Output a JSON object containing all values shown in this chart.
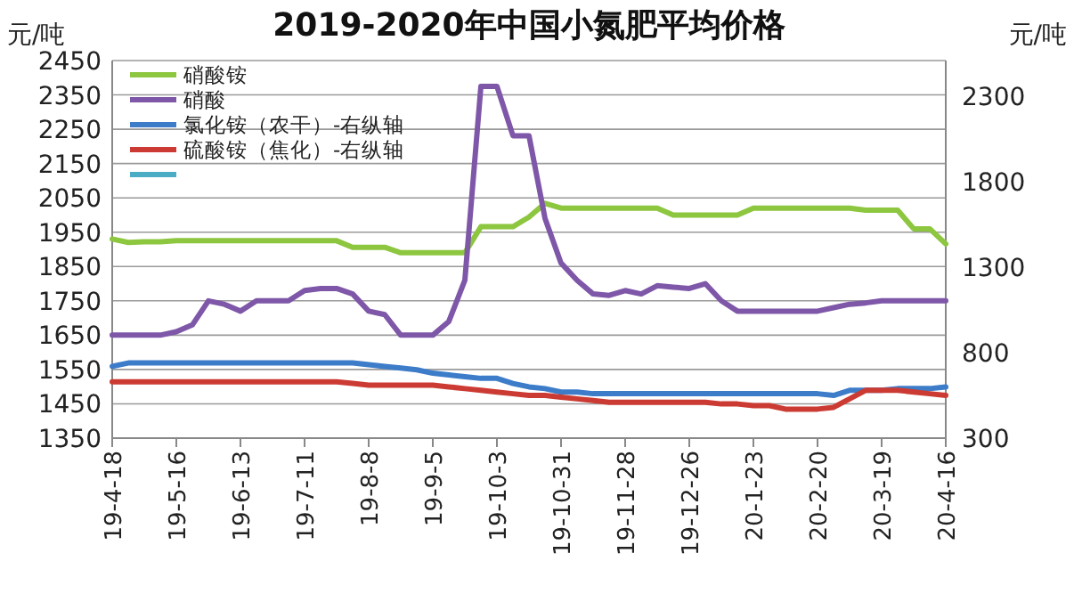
{
  "chart_data": {
    "type": "line",
    "title": "2019-2020年中国小氮肥平均价格",
    "ylabel": "元/吨",
    "y2label": "元/吨",
    "categories": [
      "19-4-18",
      null,
      null,
      null,
      "19-5-16",
      null,
      null,
      null,
      "19-6-13",
      null,
      null,
      null,
      "19-7-11",
      null,
      null,
      null,
      "19-8-8",
      null,
      null,
      null,
      "19-9-5",
      null,
      null,
      null,
      "19-10-3",
      null,
      null,
      null,
      "19-10-31",
      null,
      null,
      null,
      "19-11-28",
      null,
      null,
      null,
      "19-12-26",
      null,
      null,
      null,
      "20-1-23",
      null,
      null,
      null,
      "20-2-20",
      null,
      null,
      null,
      "20-3-19",
      null,
      null,
      null,
      "20-4-16"
    ],
    "ylim": [
      1350,
      2450
    ],
    "yticks": [
      1350,
      1450,
      1550,
      1650,
      1750,
      1850,
      1950,
      2050,
      2150,
      2250,
      2350,
      2450
    ],
    "y2lim": [
      300,
      2510
    ],
    "y2ticks": [
      300,
      800,
      1300,
      1800,
      2300
    ],
    "grid": "y",
    "legend": "top left",
    "marker": "none",
    "line_style": "solid",
    "series": [
      {
        "name": "硝酸铵",
        "color": "#8dc63f",
        "values": [
          1930,
          1920,
          1922,
          1922,
          1925,
          1925,
          1925,
          1925,
          1925,
          1925,
          1925,
          1925,
          1925,
          1925,
          1925,
          1906,
          1906,
          1906,
          1890,
          1890,
          1890,
          1890,
          1890,
          1966,
          1966,
          1966,
          1994,
          2034,
          2020,
          2020,
          2020,
          2020,
          2020,
          2020,
          2020,
          2000,
          2000,
          2000,
          2000,
          2000,
          2020,
          2020,
          2020,
          2020,
          2020,
          2020,
          2020,
          2014,
          2014,
          2014,
          1960,
          1960,
          1916
        ]
      },
      {
        "name": "硝酸",
        "color": "#7e57a8",
        "values": [
          1650,
          1650,
          1650,
          1650,
          1660,
          1680,
          1750,
          1740,
          1720,
          1750,
          1750,
          1750,
          1780,
          1786,
          1786,
          1770,
          1720,
          1710,
          1650,
          1650,
          1650,
          1690,
          1810,
          2375,
          2375,
          2231,
          2231,
          1990,
          1860,
          1810,
          1770,
          1766,
          1780,
          1770,
          1794,
          1790,
          1786,
          1800,
          1750,
          1720,
          1720,
          1720,
          1720,
          1720,
          1720,
          1730,
          1740,
          1744,
          1750,
          1750,
          1750,
          1750,
          1750
        ]
      },
      {
        "name": "氯化铵（农干）-右纵轴",
        "color": "#3d7cc9",
        "axis": "y2",
        "values": [
          720,
          740,
          740,
          740,
          740,
          740,
          740,
          740,
          740,
          740,
          740,
          740,
          740,
          740,
          740,
          740,
          730,
          720,
          710,
          700,
          680,
          670,
          660,
          650,
          650,
          620,
          600,
          590,
          570,
          570,
          560,
          560,
          560,
          560,
          560,
          560,
          560,
          560,
          560,
          560,
          560,
          560,
          560,
          560,
          560,
          550,
          580,
          580,
          580,
          590,
          590,
          590,
          600
        ]
      },
      {
        "name": "硫酸铵（焦化）-右纵轴",
        "color": "#cc3b33",
        "axis": "y2",
        "values": [
          630,
          630,
          630,
          630,
          630,
          630,
          630,
          630,
          630,
          630,
          630,
          630,
          630,
          630,
          630,
          620,
          610,
          610,
          610,
          610,
          610,
          600,
          590,
          580,
          570,
          560,
          550,
          550,
          540,
          530,
          520,
          510,
          510,
          510,
          510,
          510,
          510,
          510,
          500,
          500,
          490,
          490,
          470,
          470,
          470,
          480,
          530,
          580,
          580,
          580,
          570,
          560,
          550
        ]
      },
      {
        "color": "#4bacc6",
        "axis": "y2",
        "values": [
          null,
          null,
          null,
          null,
          null,
          null,
          null,
          null,
          null,
          null,
          null,
          null,
          null,
          null,
          null,
          null,
          null,
          null,
          null,
          null,
          null,
          null,
          null,
          null,
          null,
          null,
          null,
          null,
          null,
          null,
          null,
          null,
          null,
          null,
          null,
          null,
          null,
          null,
          null,
          null,
          null,
          null,
          null,
          null,
          null,
          null,
          null,
          null,
          null,
          null,
          null,
          null,
          null
        ]
      }
    ]
  }
}
